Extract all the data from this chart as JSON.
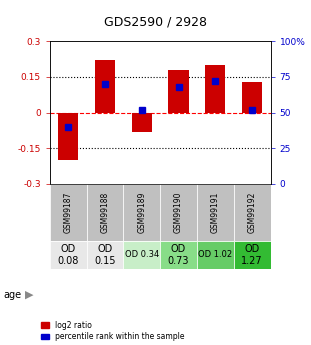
{
  "title": "GDS2590 / 2928",
  "samples": [
    "GSM99187",
    "GSM99188",
    "GSM99189",
    "GSM99190",
    "GSM99191",
    "GSM99192"
  ],
  "log2_ratio": [
    -0.2,
    0.22,
    -0.08,
    0.18,
    0.2,
    0.13
  ],
  "percentile_rank": [
    40,
    70,
    52,
    68,
    72,
    52
  ],
  "ylim_left": [
    -0.3,
    0.3
  ],
  "ylim_right": [
    0,
    100
  ],
  "yticks_left": [
    -0.3,
    -0.15,
    0,
    0.15,
    0.3
  ],
  "yticks_right": [
    0,
    25,
    50,
    75,
    100
  ],
  "hlines": [
    0.15,
    0,
    -0.15
  ],
  "hlines_styles": [
    "dotted",
    "dashed",
    "dotted"
  ],
  "hlines_colors": [
    "black",
    "red",
    "black"
  ],
  "bar_color": "#cc0000",
  "percentile_color": "#0000cc",
  "bar_width": 0.55,
  "percentile_marker_size": 5,
  "od_values": [
    "OD\n0.08",
    "OD\n0.15",
    "OD 0.34",
    "OD\n0.73",
    "OD 1.02",
    "OD\n1.27"
  ],
  "od_colors": [
    "#e8e8e8",
    "#e8e8e8",
    "#c8eec8",
    "#88dd88",
    "#66cc66",
    "#33bb33"
  ],
  "od_fontsize_large": 7,
  "od_fontsize_small": 6,
  "od_large": [
    true,
    true,
    false,
    true,
    false,
    true
  ],
  "age_label": "age",
  "legend_log2": "log2 ratio",
  "legend_pct": "percentile rank within the sample",
  "title_fontsize": 9,
  "tick_label_color_left": "#cc0000",
  "tick_label_color_right": "#0000cc",
  "background_color": "#ffffff",
  "sample_bg_color": "#c0c0c0",
  "sample_border_color": "#ffffff",
  "ytick_label_left": [
    "-0.3",
    "-0.15",
    "0",
    "0.15",
    "0.3"
  ],
  "ytick_label_right": [
    "0",
    "25",
    "50",
    "75",
    "100%"
  ]
}
